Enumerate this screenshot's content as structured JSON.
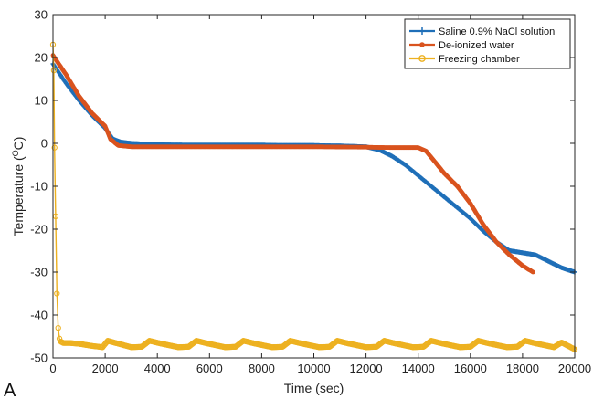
{
  "panel_label": "A",
  "chart_data": {
    "type": "line",
    "title": "",
    "xlabel": "Time (sec)",
    "ylabel_main": "Temperature (",
    "ylabel_sup": "O",
    "ylabel_tail": "C)",
    "xlim": [
      0,
      20000
    ],
    "ylim": [
      -50,
      30
    ],
    "xticks": [
      0,
      2000,
      4000,
      6000,
      8000,
      10000,
      12000,
      14000,
      16000,
      18000,
      20000
    ],
    "yticks": [
      -50,
      -40,
      -30,
      -20,
      -10,
      0,
      10,
      20,
      30
    ],
    "grid": false,
    "legend_position": "top-right",
    "series": [
      {
        "name": "Saline 0.9% NaCl solution",
        "color": "#1f6fb8",
        "marker": "plus",
        "x": [
          0,
          500,
          1000,
          1500,
          2000,
          2300,
          2600,
          3000,
          4000,
          5000,
          6000,
          7000,
          8000,
          9000,
          10000,
          11000,
          12000,
          12500,
          13000,
          13500,
          14000,
          14500,
          15000,
          15500,
          16000,
          16500,
          17000,
          17500,
          18000,
          18500,
          19000,
          19500,
          20000
        ],
        "y": [
          18.5,
          14,
          10,
          6.5,
          3.5,
          1,
          0.3,
          0,
          -0.3,
          -0.4,
          -0.4,
          -0.4,
          -0.4,
          -0.5,
          -0.5,
          -0.6,
          -0.8,
          -1.5,
          -3,
          -5,
          -7.5,
          -10,
          -12.5,
          -15,
          -17.5,
          -20.5,
          -23,
          -25,
          -25.5,
          -26,
          -27.5,
          -29,
          -30
        ]
      },
      {
        "name": "De-ionized water",
        "color": "#d9531e",
        "marker": "dot",
        "x": [
          0,
          500,
          1000,
          1500,
          2000,
          2200,
          2500,
          3000,
          4000,
          6000,
          8000,
          10000,
          12000,
          13000,
          14000,
          14300,
          14600,
          15000,
          15500,
          16000,
          16500,
          17000,
          17500,
          18000,
          18400
        ],
        "y": [
          20.5,
          16,
          11,
          7,
          4,
          1,
          -0.5,
          -0.8,
          -0.8,
          -0.8,
          -0.8,
          -0.8,
          -0.9,
          -1,
          -1,
          -1.8,
          -4,
          -7,
          -10,
          -14,
          -19,
          -23,
          -26,
          -28.5,
          -30
        ]
      },
      {
        "name": "Freezing chamber",
        "color": "#edb120",
        "marker": "circle",
        "x": [
          0,
          30,
          60,
          100,
          150,
          200,
          250,
          300,
          400,
          600,
          1000,
          1500,
          1900,
          2100,
          2400,
          3000,
          3400,
          3700,
          4100,
          4800,
          5200,
          5500,
          5900,
          6600,
          7000,
          7300,
          7700,
          8400,
          8800,
          9100,
          9500,
          10200,
          10600,
          10900,
          11300,
          12000,
          12400,
          12700,
          13100,
          13800,
          14200,
          14500,
          14900,
          15600,
          16000,
          16300,
          16700,
          17400,
          17800,
          18100,
          18500,
          19200,
          19500,
          20000
        ],
        "y": [
          23,
          17,
          -1,
          -17,
          -35,
          -43,
          -45.5,
          -46.2,
          -46.5,
          -46.5,
          -46.7,
          -47.2,
          -47.5,
          -46,
          -46.5,
          -47.5,
          -47.4,
          -46,
          -46.6,
          -47.5,
          -47.4,
          -46,
          -46.6,
          -47.5,
          -47.4,
          -46,
          -46.6,
          -47.5,
          -47.4,
          -46,
          -46.6,
          -47.5,
          -47.4,
          -46,
          -46.6,
          -47.5,
          -47.4,
          -46,
          -46.6,
          -47.5,
          -47.4,
          -46,
          -46.6,
          -47.5,
          -47.4,
          -46,
          -46.6,
          -47.5,
          -47.4,
          -46,
          -46.6,
          -47.5,
          -46.4,
          -48
        ]
      }
    ]
  }
}
